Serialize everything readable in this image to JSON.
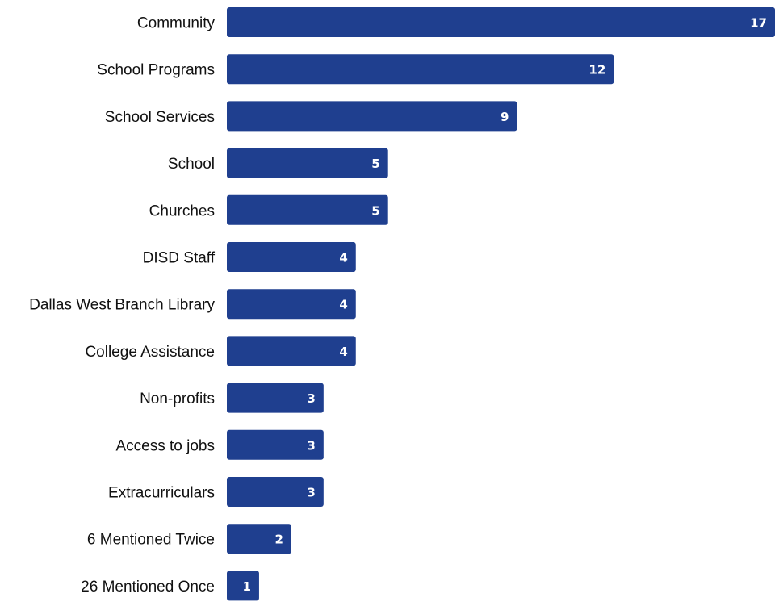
{
  "chart_data": {
    "type": "bar",
    "orientation": "horizontal",
    "categories": [
      "Community",
      "School Programs",
      "School Services",
      "School",
      "Churches",
      "DISD Staff",
      "Dallas West Branch Library",
      "College Assistance",
      "Non-profits",
      "Access to jobs",
      "Extracurriculars",
      "6 Mentioned Twice",
      "26 Mentioned Once"
    ],
    "values": [
      17,
      12,
      9,
      5,
      5,
      4,
      4,
      4,
      3,
      3,
      3,
      2,
      1
    ],
    "title": "",
    "xlabel": "",
    "ylabel": "",
    "xlim": [
      0,
      17
    ],
    "grid": false,
    "legend": "none",
    "bar_color": "#1f3f8f",
    "data_labels": true,
    "data_label_color": "#ffffff"
  }
}
